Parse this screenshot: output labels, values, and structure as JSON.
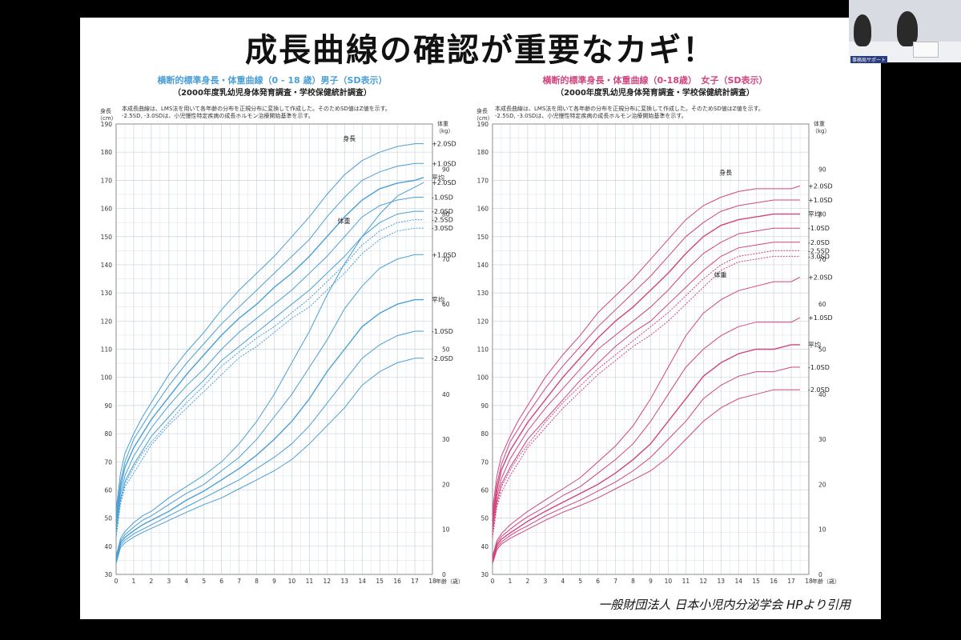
{
  "slide": {
    "title": "成長曲線の確認が重要なカギ！",
    "citation": "一般財団法人 日本小児内分泌学会 HPより引用",
    "video_caption": "事務局サポート"
  },
  "colors": {
    "boys": "#4a9fd5",
    "girls": "#d0457f",
    "grid": "#c9d3dc",
    "background": "#ffffff"
  },
  "chart_data": [
    {
      "type": "line",
      "title": "横断的標準身長・体重曲線（0 - 18 歳）男子（SD表示）",
      "subtitle": "（2000年度乳幼児身体発育調査・学校保健統計調査）",
      "note_line1": "本成長曲線は、LMS法を用いて各年齢の分布を正規分布に変換して作成した。そのためSD値はZ値を示す。",
      "note_line2": "-2.5SD, -3.0SDは、小児慢性特定疾病の成長ホルモン治療開始基準を示す。",
      "xlabel": "年齢（歳）",
      "y_left_label_1": "身長",
      "y_left_label_2": "（cm）",
      "y_right_label_1": "体重",
      "y_right_label_2": "（kg）",
      "height_label": "身長",
      "weight_label": "体重",
      "xlim": [
        0,
        18
      ],
      "xticks": [
        0,
        1,
        2,
        3,
        4,
        5,
        6,
        7,
        8,
        9,
        10,
        11,
        12,
        13,
        14,
        15,
        16,
        17,
        18
      ],
      "ylim_height": [
        30,
        190
      ],
      "height_ticks": [
        30,
        40,
        50,
        60,
        70,
        80,
        90,
        100,
        110,
        120,
        130,
        140,
        150,
        160,
        170,
        180,
        190
      ],
      "ylim_weight": [
        0,
        100
      ],
      "weight_ticks": [
        0,
        10,
        20,
        30,
        40,
        50,
        60,
        70,
        80,
        90
      ],
      "x": [
        0,
        0.25,
        0.5,
        1,
        1.5,
        2,
        3,
        4,
        5,
        6,
        7,
        8,
        9,
        10,
        11,
        12,
        13,
        14,
        15,
        16,
        17,
        17.5
      ],
      "height_series": [
        {
          "name": "+2.0SD",
          "values": [
            53,
            66,
            73,
            80,
            86,
            91,
            101,
            109,
            116,
            124,
            131,
            137,
            143,
            150,
            157,
            165,
            172,
            177,
            180,
            182,
            183,
            183
          ]
        },
        {
          "name": "+1.0SD",
          "values": [
            51,
            63,
            70,
            78,
            83,
            88,
            97,
            105,
            112,
            119,
            125,
            131,
            137,
            143,
            149,
            157,
            164,
            170,
            173,
            175,
            176,
            176
          ]
        },
        {
          "name": "平均",
          "values": [
            49,
            61,
            68,
            75,
            80,
            85,
            93,
            101,
            108,
            115,
            121,
            126,
            132,
            137,
            143,
            150,
            157,
            163,
            167,
            169,
            170,
            171
          ]
        },
        {
          "name": "-1.0SD",
          "values": [
            47,
            59,
            65,
            72,
            77,
            82,
            90,
            97,
            103,
            110,
            116,
            121,
            126,
            131,
            137,
            143,
            150,
            157,
            161,
            163,
            164,
            164
          ]
        },
        {
          "name": "-2.0SD",
          "values": [
            45,
            57,
            63,
            69,
            74,
            79,
            86,
            93,
            99,
            106,
            111,
            116,
            121,
            126,
            131,
            137,
            143,
            150,
            155,
            158,
            159,
            159
          ]
        },
        {
          "name": "-2.5SD",
          "values": [
            44,
            56,
            62,
            68,
            73,
            77,
            84,
            91,
            97,
            104,
            109,
            114,
            118,
            123,
            128,
            134,
            140,
            147,
            152,
            155,
            156,
            156
          ]
        },
        {
          "name": "-3.0SD",
          "values": [
            43,
            55,
            61,
            66,
            71,
            76,
            83,
            89,
            95,
            101,
            107,
            111,
            116,
            121,
            125,
            131,
            137,
            144,
            149,
            152,
            153,
            153
          ]
        }
      ],
      "weight_series": [
        {
          "name": "+2.0SD",
          "values": [
            4,
            8,
            9.5,
            11.5,
            13,
            14,
            17,
            19.5,
            22,
            25,
            29,
            34,
            40,
            47,
            54,
            62,
            69,
            75,
            80,
            84,
            86,
            87
          ]
        },
        {
          "name": "+1.0SD",
          "values": [
            3.5,
            7.5,
            8.8,
            10.5,
            12,
            13,
            15.5,
            18,
            20,
            23,
            26,
            30,
            35,
            40,
            46,
            52,
            59,
            64,
            68,
            70,
            71,
            71
          ]
        },
        {
          "name": "平均",
          "values": [
            3,
            7,
            8.2,
            9.7,
            11,
            12,
            14,
            16.5,
            18.5,
            21,
            23.5,
            26.5,
            30,
            34,
            39,
            45,
            50,
            55,
            58,
            60,
            61,
            61
          ]
        },
        {
          "name": "-1.0SD",
          "values": [
            2.7,
            6.5,
            7.6,
            9,
            10,
            11,
            13,
            15,
            17,
            19,
            21,
            23.5,
            26,
            29,
            33,
            38,
            43,
            48,
            51,
            53,
            54,
            54
          ]
        },
        {
          "name": "-2.0SD",
          "values": [
            2.4,
            6,
            7,
            8.3,
            9.3,
            10.2,
            12,
            13.8,
            15.5,
            17,
            19,
            21,
            23,
            25.5,
            29,
            33,
            37,
            42,
            45,
            47,
            48,
            48
          ]
        }
      ]
    },
    {
      "type": "line",
      "title": "横断的標準身長・体重曲線（0-18歳）　女子（SD表示）",
      "subtitle": "（2000年度乳幼児身体発育調査・学校保健統計調査）",
      "note_line1": "本成長曲線は、LMS法を用いて各年齢の分布を正規分布に変換して作成した。そのためSD値はZ値を示す。",
      "note_line2": "-2.5SD, -3.0SDは、小児慢性特定疾病の成長ホルモン治療開始基準を示す。",
      "xlabel": "年齢（歳）",
      "y_left_label_1": "身長",
      "y_left_label_2": "（cm）",
      "y_right_label_1": "体重",
      "y_right_label_2": "（kg）",
      "height_label": "身長",
      "weight_label": "体重",
      "xlim": [
        0,
        18
      ],
      "xticks": [
        0,
        1,
        2,
        3,
        4,
        5,
        6,
        7,
        8,
        9,
        10,
        11,
        12,
        13,
        14,
        15,
        16,
        17,
        18
      ],
      "ylim_height": [
        30,
        190
      ],
      "height_ticks": [
        30,
        40,
        50,
        60,
        70,
        80,
        90,
        100,
        110,
        120,
        130,
        140,
        150,
        160,
        170,
        180,
        190
      ],
      "ylim_weight": [
        0,
        100
      ],
      "weight_ticks": [
        0,
        10,
        20,
        30,
        40,
        50,
        60,
        70,
        80,
        90
      ],
      "x": [
        0,
        0.25,
        0.5,
        1,
        1.5,
        2,
        3,
        4,
        5,
        6,
        7,
        8,
        9,
        10,
        11,
        12,
        13,
        14,
        15,
        16,
        17,
        17.5
      ],
      "height_series": [
        {
          "name": "+2.0SD",
          "values": [
            53,
            65,
            72,
            79,
            85,
            90,
            100,
            108,
            115,
            123,
            129,
            135,
            142,
            149,
            156,
            161,
            164,
            166,
            167,
            167,
            167,
            168
          ]
        },
        {
          "name": "+1.0SD",
          "values": [
            51,
            62,
            69,
            77,
            82,
            87,
            96,
            104,
            111,
            118,
            124,
            130,
            136,
            143,
            150,
            155,
            159,
            161,
            162,
            163,
            163,
            163
          ]
        },
        {
          "name": "平均",
          "values": [
            49,
            60,
            67,
            74,
            79,
            84,
            92,
            100,
            107,
            114,
            120,
            125,
            131,
            137,
            144,
            150,
            154,
            156,
            157,
            158,
            158,
            158
          ]
        },
        {
          "name": "-1.0SD",
          "values": [
            47,
            58,
            64,
            71,
            76,
            81,
            89,
            96,
            103,
            110,
            115,
            120,
            125,
            131,
            138,
            144,
            148,
            151,
            152,
            153,
            153,
            153
          ]
        },
        {
          "name": "-2.0SD",
          "values": [
            45,
            56,
            62,
            68,
            73,
            78,
            85,
            92,
            99,
            105,
            111,
            116,
            120,
            126,
            132,
            138,
            143,
            146,
            147,
            148,
            148,
            148
          ]
        },
        {
          "name": "-2.5SD",
          "values": [
            44,
            55,
            61,
            67,
            72,
            76,
            84,
            91,
            97,
            103,
            108,
            113,
            118,
            123,
            129,
            135,
            140,
            143,
            144,
            145,
            145,
            145
          ]
        },
        {
          "name": "-3.0SD",
          "values": [
            43,
            54,
            59,
            65,
            70,
            75,
            82,
            89,
            95,
            101,
            106,
            111,
            115,
            120,
            126,
            132,
            138,
            141,
            142,
            143,
            143,
            143
          ]
        }
      ],
      "weight_series": [
        {
          "name": "+2.0SD",
          "values": [
            4,
            7.5,
            9,
            11,
            12.5,
            14,
            16.5,
            19,
            21.5,
            25,
            28.5,
            33,
            39,
            46,
            53,
            58,
            61,
            63,
            64,
            65,
            65,
            66
          ]
        },
        {
          "name": "+1.0SD",
          "values": [
            3.5,
            7,
            8.4,
            10,
            11.5,
            12.8,
            15,
            17.5,
            19.5,
            22.5,
            25.5,
            29,
            34,
            40,
            46,
            50,
            53,
            55,
            56,
            56,
            56,
            57
          ]
        },
        {
          "name": "平均",
          "values": [
            3,
            6.5,
            7.8,
            9.2,
            10.5,
            11.8,
            14,
            16,
            18,
            20,
            22.5,
            25.5,
            29,
            34,
            39,
            44,
            47,
            49,
            50,
            50,
            51,
            51
          ]
        },
        {
          "name": "-1.0SD",
          "values": [
            2.7,
            6,
            7.2,
            8.6,
            9.8,
            10.8,
            13,
            14.8,
            16.5,
            18.5,
            20.5,
            23,
            26,
            30,
            34,
            39,
            42,
            44,
            45,
            45,
            46,
            46
          ]
        },
        {
          "name": "-2.0SD",
          "values": [
            2.4,
            5.5,
            6.7,
            8,
            9,
            10,
            12,
            13.8,
            15.3,
            17,
            19,
            21,
            23,
            26,
            30,
            34,
            37,
            39,
            40,
            41,
            41,
            41
          ]
        }
      ]
    }
  ]
}
